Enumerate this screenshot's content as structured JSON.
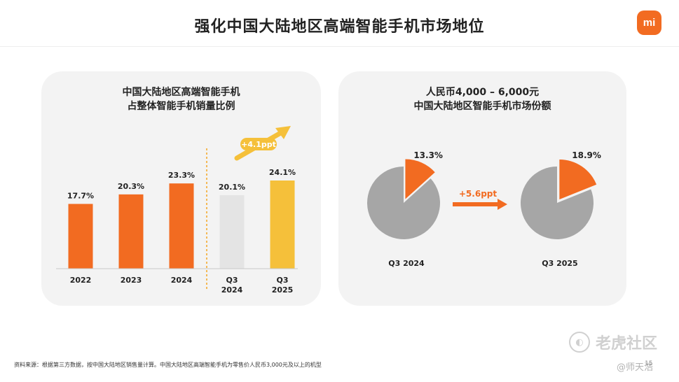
{
  "slide": {
    "title": "强化中国大陆地区高端智能手机市场地位",
    "logo": "mi",
    "footnote": "资料来源：根据第三方数据，按中国大陆地区销售量计算。中国大陆地区高端智能手机为零售价人民币3,000元及以上的机型",
    "page_number": "15",
    "watermark": "老虎社区",
    "handle": "@师天浩"
  },
  "colors": {
    "orange": "#f26b21",
    "grey_bar": "#e4e4e4",
    "yellow": "#f5c03a",
    "pie_grey": "#a6a6a6",
    "panel": "#f3f3f3"
  },
  "left_panel": {
    "title_line1": "中国大陆地区高端智能手机",
    "title_line2": "占整体智能手机销量比例"
  },
  "right_panel": {
    "title_line1": "人民币4,000 – 6,000元",
    "title_line2": "中国大陆地区智能手机市场份额"
  },
  "chart_data": [
    {
      "type": "bar",
      "title": "中国大陆地区高端智能手机占整体智能手机销量比例",
      "categories": [
        "2022",
        "2023",
        "2024",
        "Q3 2024",
        "Q3 2025"
      ],
      "category_lines": [
        [
          "2022"
        ],
        [
          "2023"
        ],
        [
          "2024"
        ],
        [
          "Q3",
          "2024"
        ],
        [
          "Q3",
          "2025"
        ]
      ],
      "values": [
        17.7,
        20.3,
        23.3,
        20.1,
        24.1
      ],
      "labels": [
        "17.7%",
        "20.3%",
        "23.3%",
        "20.1%",
        "24.1%"
      ],
      "bar_colors": [
        "#f26b21",
        "#f26b21",
        "#f26b21",
        "#e4e4e4",
        "#f5c03a"
      ],
      "ylim": [
        0,
        24.1
      ],
      "annotation": "+4.1ppt",
      "divider_after_index": 2
    },
    {
      "type": "pie",
      "title": "人民币4,000 – 6,000元 中国大陆地区智能手机市场份额",
      "charts": [
        {
          "label": "Q3 2024",
          "share": 13.3,
          "share_label": "13.3%"
        },
        {
          "label": "Q3 2025",
          "share": 18.9,
          "share_label": "18.9%"
        }
      ],
      "annotation": "+5.6ppt"
    }
  ]
}
